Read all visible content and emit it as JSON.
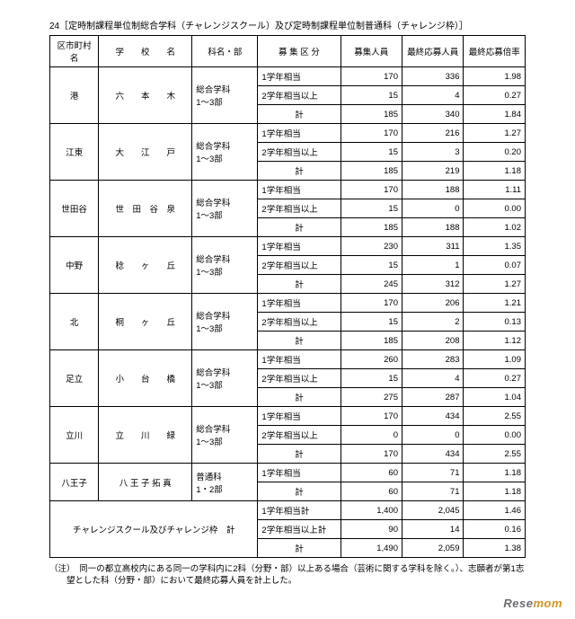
{
  "title": "24［定時制課程単位制総合学科（チャレンジスクール）及び定時制課程単位制普通科（チャレンジ枠）］",
  "note": "（注）　同一の都立高校内にある同一の学科内に2科（分野・部）以上ある場合（芸術に関する学科を除く。）、志願者が第1志望とした科（分野・部）において最終応募人員を計上した。",
  "watermark_left": "Rese",
  "watermark_right": "mom",
  "headers": {
    "ward": "区市町村名",
    "school": "学　　校　　名",
    "dept": "科名・部",
    "cat": "募 集 区 分",
    "bosyu": "募集人員",
    "oubo": "最終応募人員",
    "ratio": "最終応募倍率"
  },
  "dept_common": "総合学科\n1～3部",
  "schools": [
    {
      "ward": "港",
      "school": "六　　本　　木",
      "dept": "総合学科\n1～3部",
      "rows": [
        {
          "cat": "1学年相当",
          "b": "170",
          "o": "336",
          "r": "1.98"
        },
        {
          "cat": "2学年相当以上",
          "b": "15",
          "o": "4",
          "r": "0.27"
        },
        {
          "cat": "計",
          "b": "185",
          "o": "340",
          "r": "1.84"
        }
      ]
    },
    {
      "ward": "江東",
      "school": "大　　江　　戸",
      "dept": "総合学科\n1～3部",
      "rows": [
        {
          "cat": "1学年相当",
          "b": "170",
          "o": "216",
          "r": "1.27"
        },
        {
          "cat": "2学年相当以上",
          "b": "15",
          "o": "3",
          "r": "0.20"
        },
        {
          "cat": "計",
          "b": "185",
          "o": "219",
          "r": "1.18"
        }
      ]
    },
    {
      "ward": "世田谷",
      "school": "世　田　谷　泉",
      "dept": "総合学科\n1～3部",
      "rows": [
        {
          "cat": "1学年相当",
          "b": "170",
          "o": "188",
          "r": "1.11"
        },
        {
          "cat": "2学年相当以上",
          "b": "15",
          "o": "0",
          "r": "0.00"
        },
        {
          "cat": "計",
          "b": "185",
          "o": "188",
          "r": "1.02"
        }
      ]
    },
    {
      "ward": "中野",
      "school": "稔　　ヶ　　丘",
      "dept": "総合学科\n1～3部",
      "rows": [
        {
          "cat": "1学年相当",
          "b": "230",
          "o": "311",
          "r": "1.35"
        },
        {
          "cat": "2学年相当以上",
          "b": "15",
          "o": "1",
          "r": "0.07"
        },
        {
          "cat": "計",
          "b": "245",
          "o": "312",
          "r": "1.27"
        }
      ]
    },
    {
      "ward": "北",
      "school": "桐　　ヶ　　丘",
      "dept": "総合学科\n1～3部",
      "rows": [
        {
          "cat": "1学年相当",
          "b": "170",
          "o": "206",
          "r": "1.21"
        },
        {
          "cat": "2学年相当以上",
          "b": "15",
          "o": "2",
          "r": "0.13"
        },
        {
          "cat": "計",
          "b": "185",
          "o": "208",
          "r": "1.12"
        }
      ]
    },
    {
      "ward": "足立",
      "school": "小　　台　　橋",
      "dept": "総合学科\n1～3部",
      "rows": [
        {
          "cat": "1学年相当",
          "b": "260",
          "o": "283",
          "r": "1.09"
        },
        {
          "cat": "2学年相当以上",
          "b": "15",
          "o": "4",
          "r": "0.27"
        },
        {
          "cat": "計",
          "b": "275",
          "o": "287",
          "r": "1.04"
        }
      ]
    },
    {
      "ward": "立川",
      "school": "立　　川　　緑",
      "dept": "総合学科\n1～3部",
      "rows": [
        {
          "cat": "1学年相当",
          "b": "170",
          "o": "434",
          "r": "2.55"
        },
        {
          "cat": "2学年相当以上",
          "b": "0",
          "o": "0",
          "r": "0.00"
        },
        {
          "cat": "計",
          "b": "170",
          "o": "434",
          "r": "2.55"
        }
      ]
    },
    {
      "ward": "八王子",
      "school": "八 王 子 拓 真",
      "dept": "普通科\n1・2部",
      "rows": [
        {
          "cat": "1学年相当",
          "b": "60",
          "o": "71",
          "r": "1.18"
        },
        {
          "cat": "計",
          "b": "60",
          "o": "71",
          "r": "1.18"
        }
      ]
    }
  ],
  "totals": {
    "label": "チャレンジスクール及びチャレンジ枠　計",
    "rows": [
      {
        "cat": "1学年相当計",
        "b": "1,400",
        "o": "2,045",
        "r": "1.46"
      },
      {
        "cat": "2学年相当以上計",
        "b": "90",
        "o": "14",
        "r": "0.16"
      },
      {
        "cat": "計",
        "b": "1,490",
        "o": "2,059",
        "r": "1.38"
      }
    ]
  }
}
